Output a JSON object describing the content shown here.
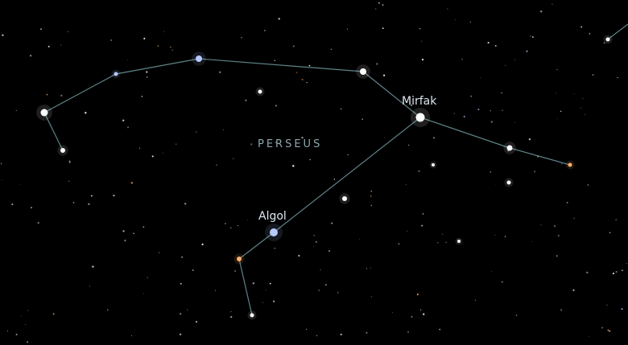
{
  "constellation": {
    "name": "PERSEUS"
  },
  "star_labels": {
    "mirfak": "Mirfak",
    "algol": "Algol"
  },
  "colors": {
    "background": "#000000",
    "constellation_line": "#6f9aa0",
    "label_text": "#dfe6ee",
    "constellation_label": "#8fa7ad",
    "star_white": "#ffffff",
    "star_blue": "#b7c8ff",
    "star_orange": "#ffb066"
  }
}
